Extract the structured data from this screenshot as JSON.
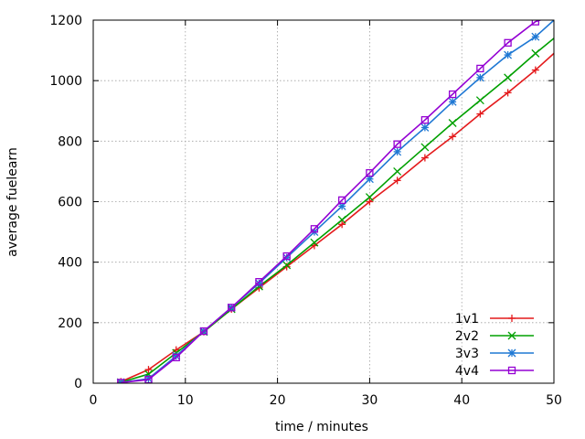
{
  "chart_data": {
    "type": "line",
    "xlabel": "time / minutes",
    "ylabel": "average fuelearn",
    "xlim": [
      0,
      50
    ],
    "ylim": [
      0,
      1200
    ],
    "xticks": [
      0,
      10,
      20,
      30,
      40,
      50
    ],
    "yticks": [
      0,
      200,
      400,
      600,
      800,
      1000,
      1200
    ],
    "grid": true,
    "legend_position": "bottom-right",
    "x": [
      3,
      6,
      9,
      12,
      15,
      18,
      21,
      24,
      27,
      30,
      33,
      36,
      39,
      42,
      45,
      48
    ],
    "series": [
      {
        "name": "1v1",
        "color": "#e41a1c",
        "marker": "plus",
        "values": [
          5,
          45,
          110,
          170,
          245,
          315,
          385,
          455,
          525,
          600,
          670,
          745,
          815,
          890,
          960,
          1035
        ],
        "end_value": 1090
      },
      {
        "name": "2v2",
        "color": "#00a000",
        "marker": "cross",
        "values": [
          3,
          30,
          100,
          170,
          245,
          320,
          390,
          465,
          540,
          615,
          700,
          780,
          860,
          935,
          1010,
          1090
        ],
        "end_value": 1140
      },
      {
        "name": "3v3",
        "color": "#1f78d4",
        "marker": "star",
        "values": [
          2,
          15,
          90,
          172,
          250,
          330,
          415,
          500,
          585,
          675,
          765,
          845,
          930,
          1010,
          1085,
          1145
        ],
        "end_value": 1200
      },
      {
        "name": "4v4",
        "color": "#9400d3",
        "marker": "square",
        "values": [
          2,
          12,
          85,
          172,
          250,
          335,
          420,
          510,
          605,
          695,
          790,
          870,
          955,
          1040,
          1125,
          1195
        ],
        "end_value": 1215
      }
    ]
  }
}
